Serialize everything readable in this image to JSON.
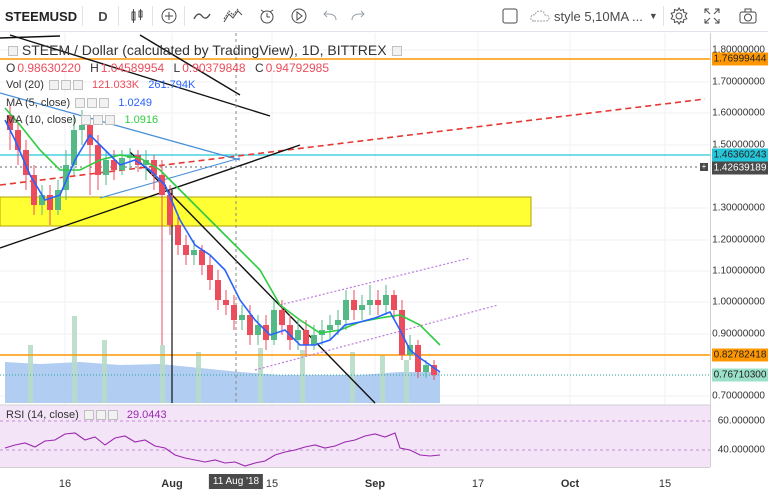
{
  "toolbar": {
    "symbol": "STEEMUSD",
    "interval": "D",
    "style_label": "style 5,10MA ..."
  },
  "legend": {
    "main": "STEEM / Dollar (calculated by TradingView), 1D, BITTREX",
    "o_label": "O",
    "o_val": "0.98630220",
    "h_label": "H",
    "h_val": "1.04589954",
    "l_label": "L",
    "l_val": "0.90379848",
    "c_label": "C",
    "c_val": "0.94792985",
    "vol_label": "Vol (20)",
    "vol_val1": "121.033K",
    "vol_val2": "261.794K",
    "ma5_label": "MA (5, close)",
    "ma5_val": "1.0249",
    "ma10_label": "MA (10, close)",
    "ma10_val": "1.0916",
    "rsi_label": "RSI (14, close)",
    "rsi_val": "29.0443"
  },
  "price_axis": {
    "labels": [
      "1.80000000",
      "1.70000000",
      "1.60000000",
      "1.50000000",
      "1.30000000",
      "1.20000000",
      "1.10000000",
      "1.00000000",
      "0.90000000",
      "0.70000000"
    ],
    "badge_orange_top": "1.76999444",
    "badge_teal": "1.46360243",
    "badge_dark": "1.42639189",
    "badge_orange_bottom": "0.82782418",
    "badge_last": "0.76710300"
  },
  "rsi_axis": {
    "labels": [
      "60.000000",
      "40.000000"
    ]
  },
  "time_axis": {
    "labels": [
      "16",
      "Aug",
      "15",
      "Sep",
      "17",
      "Oct",
      "15"
    ],
    "crosshair_date": "11 Aug '18"
  },
  "colors": {
    "up": "#53b987",
    "down": "#eb4d5c",
    "ma5": "#2962ff",
    "ma10": "#2ecc40",
    "orange": "#ff9800",
    "teal": "#26c6da",
    "yellow": "#ffff33",
    "purple": "#9c27b0"
  },
  "chart_data": {
    "type": "candlestick",
    "levels": {
      "resistance_top": 1.76999444,
      "teal_line": 1.46360243,
      "dark_line": 1.42639189,
      "support_bottom": 0.82782418,
      "last": 0.767103
    },
    "zone": [
      1.25,
      1.34
    ]
  }
}
